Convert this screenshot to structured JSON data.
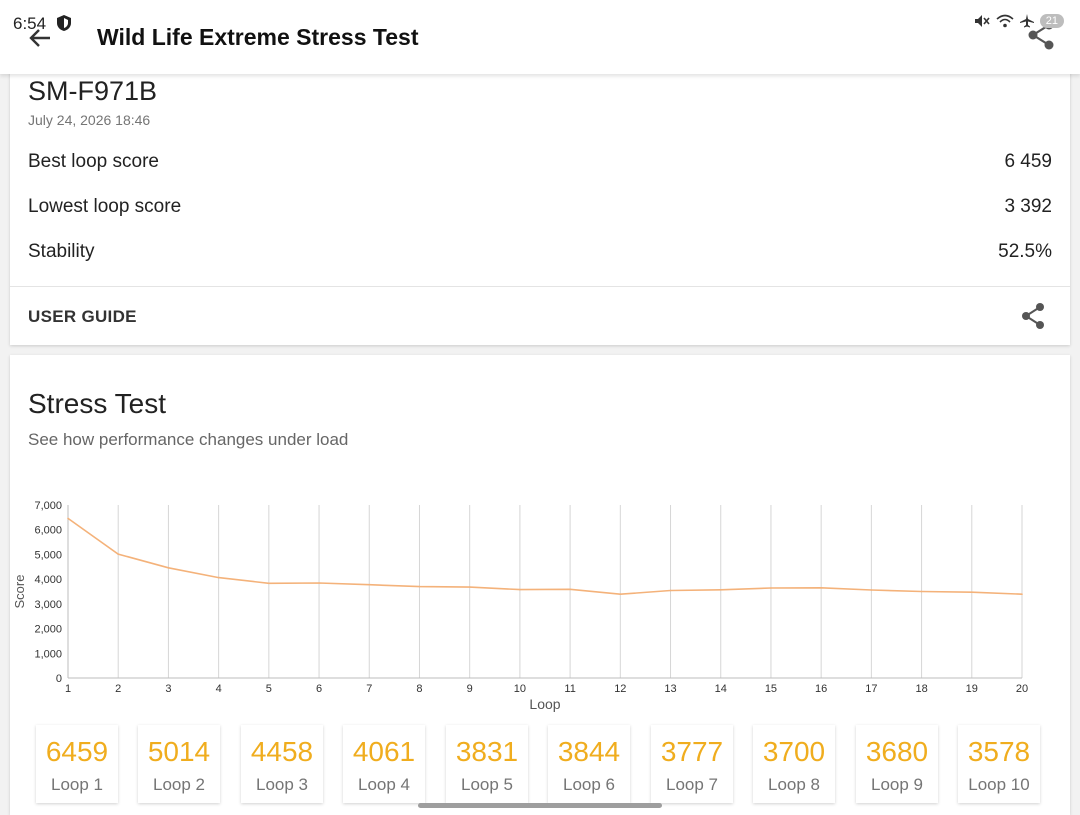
{
  "status_bar": {
    "time": "6:54",
    "battery": "21"
  },
  "app_bar": {
    "title": "Wild Life Extreme Stress Test"
  },
  "summary": {
    "device": "SM-F971B",
    "date": "July 24, 2026 18:46",
    "rows": [
      {
        "label": "Best loop score",
        "value": "6 459"
      },
      {
        "label": "Lowest loop score",
        "value": "3 392"
      },
      {
        "label": "Stability",
        "value": "52.5%"
      }
    ],
    "user_guide": "USER GUIDE"
  },
  "stress": {
    "title": "Stress Test",
    "subtitle": "See how performance changes under load",
    "tiles": [
      {
        "score": "6459",
        "label": "Loop 1"
      },
      {
        "score": "5014",
        "label": "Loop 2"
      },
      {
        "score": "4458",
        "label": "Loop 3"
      },
      {
        "score": "4061",
        "label": "Loop 4"
      },
      {
        "score": "3831",
        "label": "Loop 5"
      },
      {
        "score": "3844",
        "label": "Loop 6"
      },
      {
        "score": "3777",
        "label": "Loop 7"
      },
      {
        "score": "3700",
        "label": "Loop 8"
      },
      {
        "score": "3680",
        "label": "Loop 9"
      },
      {
        "score": "3578",
        "label": "Loop 10"
      }
    ]
  },
  "chart_data": {
    "type": "line",
    "xlabel": "Loop",
    "ylabel": "Score",
    "x": [
      1,
      2,
      3,
      4,
      5,
      6,
      7,
      8,
      9,
      10,
      11,
      12,
      13,
      14,
      15,
      16,
      17,
      18,
      19,
      20
    ],
    "series": [
      {
        "values": [
          6459,
          5014,
          4458,
          4061,
          3831,
          3844,
          3777,
          3700,
          3680,
          3578,
          3590,
          3392,
          3540,
          3570,
          3640,
          3650,
          3560,
          3500,
          3470,
          3392
        ]
      }
    ],
    "ylim": [
      0,
      7000
    ],
    "yticks": [
      0,
      1000,
      2000,
      3000,
      4000,
      5000,
      6000,
      7000
    ],
    "ytick_labels": [
      "0",
      "1,000",
      "2,000",
      "3,000",
      "4,000",
      "5,000",
      "6,000",
      "7,000"
    ],
    "xtick_labels": [
      "1",
      "2",
      "3",
      "4",
      "5",
      "6",
      "7",
      "8",
      "9",
      "10",
      "11",
      "12",
      "13",
      "14",
      "15",
      "16",
      "17",
      "18",
      "19",
      "20"
    ],
    "line_color": "#f4b27a",
    "grid": "vertical"
  },
  "colors": {
    "accent": "#f0ad1e",
    "line": "#f4b27a"
  }
}
